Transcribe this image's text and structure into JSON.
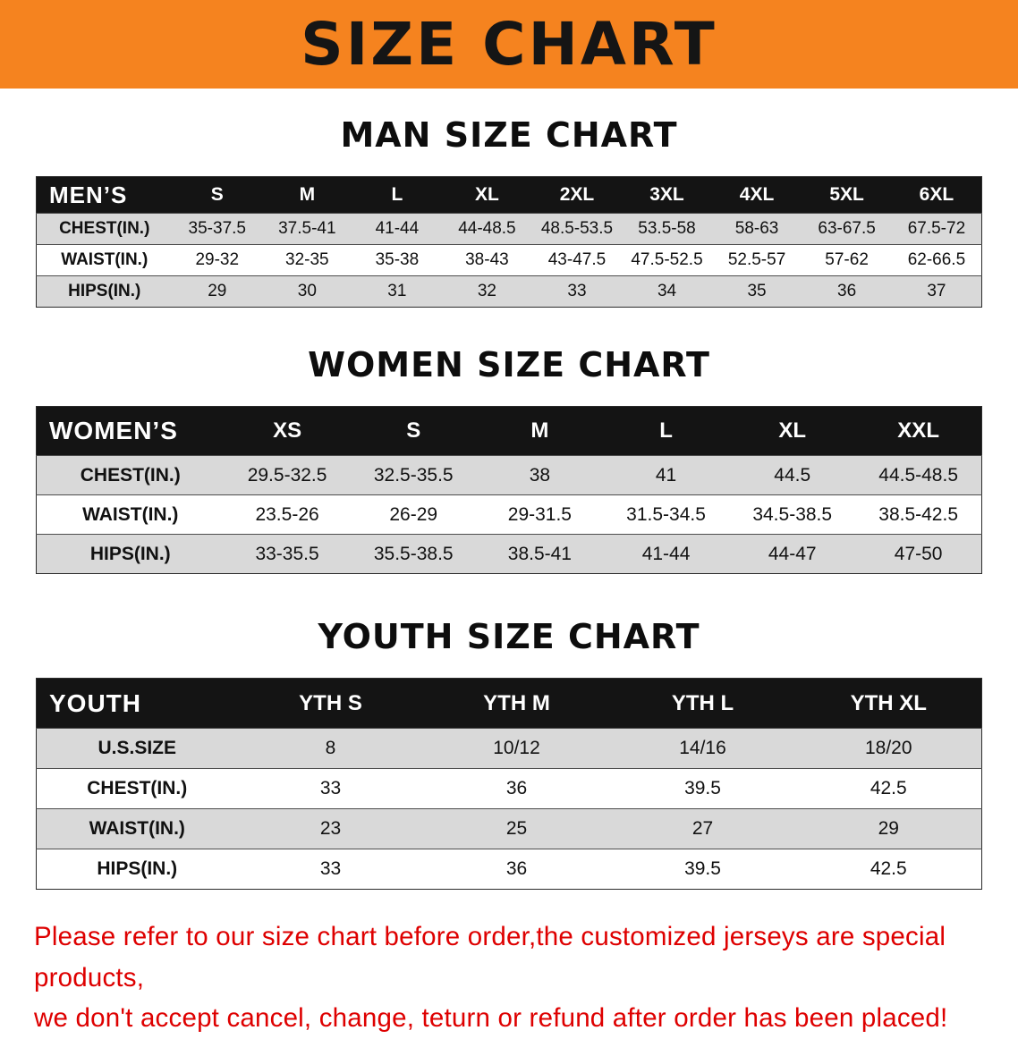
{
  "banner": {
    "title": "SIZE CHART"
  },
  "colors": {
    "banner_bg": "#F5831F",
    "table_header_bg": "#141414",
    "row_stripe": "#D9D9D9",
    "disclaimer_red": "#DE0000"
  },
  "sections": [
    {
      "heading": "MAN SIZE CHART",
      "table": {
        "header": [
          "MEN’S",
          "S",
          "M",
          "L",
          "XL",
          "2XL",
          "3XL",
          "4XL",
          "5XL",
          "6XL"
        ],
        "rows": [
          [
            "CHEST(IN.)",
            "35-37.5",
            "37.5-41",
            "41-44",
            "44-48.5",
            "48.5-53.5",
            "53.5-58",
            "58-63",
            "63-67.5",
            "67.5-72"
          ],
          [
            "WAIST(IN.)",
            "29-32",
            "32-35",
            "35-38",
            "38-43",
            "43-47.5",
            "47.5-52.5",
            "52.5-57",
            "57-62",
            "62-66.5"
          ],
          [
            "HIPS(IN.)",
            "29",
            "30",
            "31",
            "32",
            "33",
            "34",
            "35",
            "36",
            "37"
          ]
        ]
      }
    },
    {
      "heading": "WOMEN SIZE CHART",
      "table": {
        "header": [
          "WOMEN’S",
          "XS",
          "S",
          "M",
          "L",
          "XL",
          "XXL"
        ],
        "rows": [
          [
            "CHEST(IN.)",
            "29.5-32.5",
            "32.5-35.5",
            "38",
            "41",
            "44.5",
            "44.5-48.5"
          ],
          [
            "WAIST(IN.)",
            "23.5-26",
            "26-29",
            "29-31.5",
            "31.5-34.5",
            "34.5-38.5",
            "38.5-42.5"
          ],
          [
            "HIPS(IN.)",
            "33-35.5",
            "35.5-38.5",
            "38.5-41",
            "41-44",
            "44-47",
            "47-50"
          ]
        ]
      }
    },
    {
      "heading": "YOUTH SIZE CHART",
      "table": {
        "header": [
          "YOUTH",
          "YTH S",
          "YTH M",
          "YTH L",
          "YTH XL"
        ],
        "rows": [
          [
            "U.S.SIZE",
            "8",
            "10/12",
            "14/16",
            "18/20"
          ],
          [
            "CHEST(IN.)",
            "33",
            "36",
            "39.5",
            "42.5"
          ],
          [
            "WAIST(IN.)",
            "23",
            "25",
            "27",
            "29"
          ],
          [
            "HIPS(IN.)",
            "33",
            "36",
            "39.5",
            "42.5"
          ]
        ]
      }
    }
  ],
  "disclaimer": {
    "line1": "Please refer to our size chart before order,the customized jerseys are special products,",
    "line2": "we don't accept cancel, change, teturn or refund after order has been placed!"
  }
}
